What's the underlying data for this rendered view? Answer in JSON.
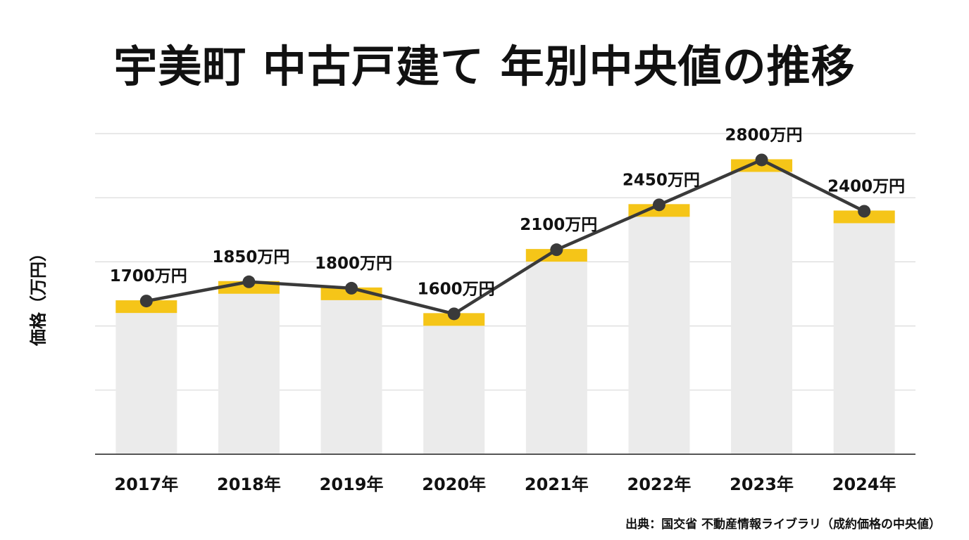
{
  "chart_data": {
    "type": "bar",
    "title": "宇美町 中古戸建て 年別中央値の推移",
    "ylabel": "価格（万円）",
    "xlabel": "",
    "categories": [
      "2017年",
      "2018年",
      "2019年",
      "2020年",
      "2021年",
      "2022年",
      "2023年",
      "2024年"
    ],
    "values": [
      1700,
      1850,
      1800,
      1600,
      2100,
      2450,
      2800,
      2400
    ],
    "data_labels": [
      "1700万円",
      "1850万円",
      "1800万円",
      "1600万円",
      "2100万円",
      "2450万円",
      "2800万円",
      "2400万円"
    ],
    "ylim": [
      500,
      3000
    ],
    "grid": true,
    "line_overlay": true,
    "colors": {
      "bar": "#ebebeb",
      "bar_cap": "#f5c518",
      "line": "#3a3a3a",
      "grid": "#d9d9d9",
      "axis": "#555555"
    }
  },
  "source": "出典：国交省 不動産情報ライブラリ（成約価格の中央値）"
}
